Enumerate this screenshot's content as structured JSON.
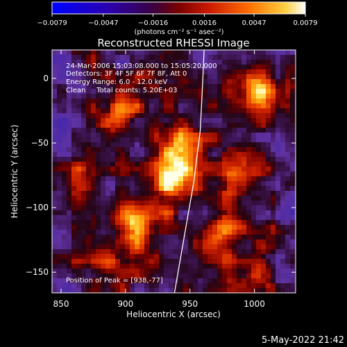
{
  "chart_data": {
    "type": "heatmap",
    "title": "Reconstructed RHESSI Image",
    "xlabel": "Heliocentric X (arcsec)",
    "ylabel": "Heliocentric Y (arcsec)",
    "xlim": [
      843,
      1032
    ],
    "ylim": [
      -166,
      22
    ],
    "x_ticks": [
      "850",
      "900",
      "950",
      "1000"
    ],
    "y_ticks": [
      "0",
      "−50",
      "−100",
      "−150"
    ],
    "x_tick_values": [
      850,
      900,
      950,
      1000
    ],
    "y_tick_values": [
      0,
      -50,
      -100,
      -150
    ],
    "colorbar": {
      "min": -0.0079,
      "max": 0.0079,
      "ticks": [
        "−0.0079",
        "−0.0047",
        "−0.0016",
        "0.0016",
        "0.0047",
        "0.0079"
      ],
      "tick_values": [
        -0.0079,
        -0.0047,
        -0.0016,
        0.0016,
        0.0047,
        0.0079
      ],
      "unit_label": "(photons cm⁻² s⁻¹ asec⁻²)"
    },
    "annotations": [
      "24-Mar-2006 15:03:08.000 to 15:05:20.000",
      "Detectors: 3F 4F 5F 6F 7F 8F, Att 0",
      "Energy Range: 6.0 - 12.0 keV",
      "Clean     Total counts: 5.20E+03"
    ],
    "peak_text": "Position of Peak = [938,-77]",
    "peak": [
      938,
      -77
    ],
    "bright_sources": [
      {
        "x": 938,
        "y": -77,
        "intensity": 1.0
      },
      {
        "x": 907,
        "y": -111,
        "intensity": 0.85
      },
      {
        "x": 1004,
        "y": -7,
        "intensity": 0.7
      },
      {
        "x": 991,
        "y": -76,
        "intensity": 0.55
      },
      {
        "x": 895,
        "y": -25,
        "intensity": 0.55
      },
      {
        "x": 863,
        "y": -82,
        "intensity": 0.5
      },
      {
        "x": 975,
        "y": -118,
        "intensity": 0.55
      },
      {
        "x": 1002,
        "y": -153,
        "intensity": 0.5
      },
      {
        "x": 888,
        "y": -148,
        "intensity": 0.45
      },
      {
        "x": 942,
        "y": -46,
        "intensity": 0.5
      }
    ],
    "limb_curve": [
      [
        961,
        22
      ],
      [
        960,
        0
      ],
      [
        958,
        -40
      ],
      [
        953,
        -80
      ],
      [
        946,
        -120
      ],
      [
        938,
        -166
      ]
    ],
    "grid": false
  },
  "footer": {
    "date": "5-May-2022 21:42"
  },
  "colors": {
    "background": "#000000",
    "axis": "#ffffff",
    "limb": "#ffffff"
  }
}
